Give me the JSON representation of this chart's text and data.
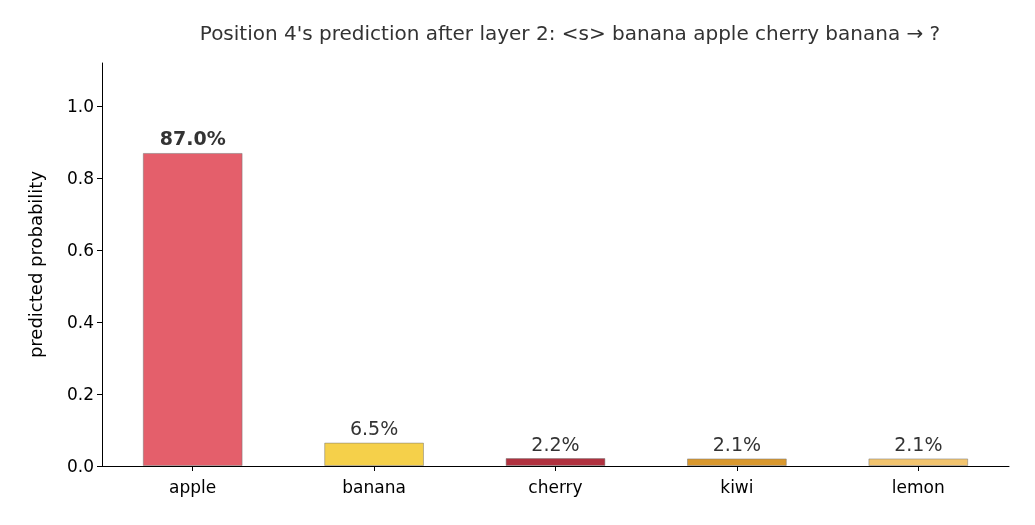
{
  "chart_data": {
    "type": "bar",
    "title": "Position 4's prediction after layer 2: <s> banana apple cherry banana → ?",
    "ylabel": "predicted probability",
    "categories": [
      "apple",
      "banana",
      "cherry",
      "kiwi",
      "lemon"
    ],
    "values": [
      0.87,
      0.065,
      0.022,
      0.021,
      0.021
    ],
    "colors": [
      "#e45f6b",
      "#f5d04a",
      "#b0313f",
      "#d9982e",
      "#f2c46e"
    ],
    "value_labels": [
      "87.0%",
      "6.5%",
      "2.2%",
      "2.1%",
      "2.1%"
    ],
    "ylim": [
      0,
      1.12
    ],
    "yticks": [
      {
        "value": 0,
        "label": "0.0"
      },
      {
        "value": 0.2,
        "label": "0.2"
      },
      {
        "value": 0.4,
        "label": "0.4"
      },
      {
        "value": 0.6,
        "label": "0.6"
      },
      {
        "value": 0.8,
        "label": "0.8"
      },
      {
        "value": 1,
        "label": "1.0"
      }
    ],
    "grid": false
  }
}
